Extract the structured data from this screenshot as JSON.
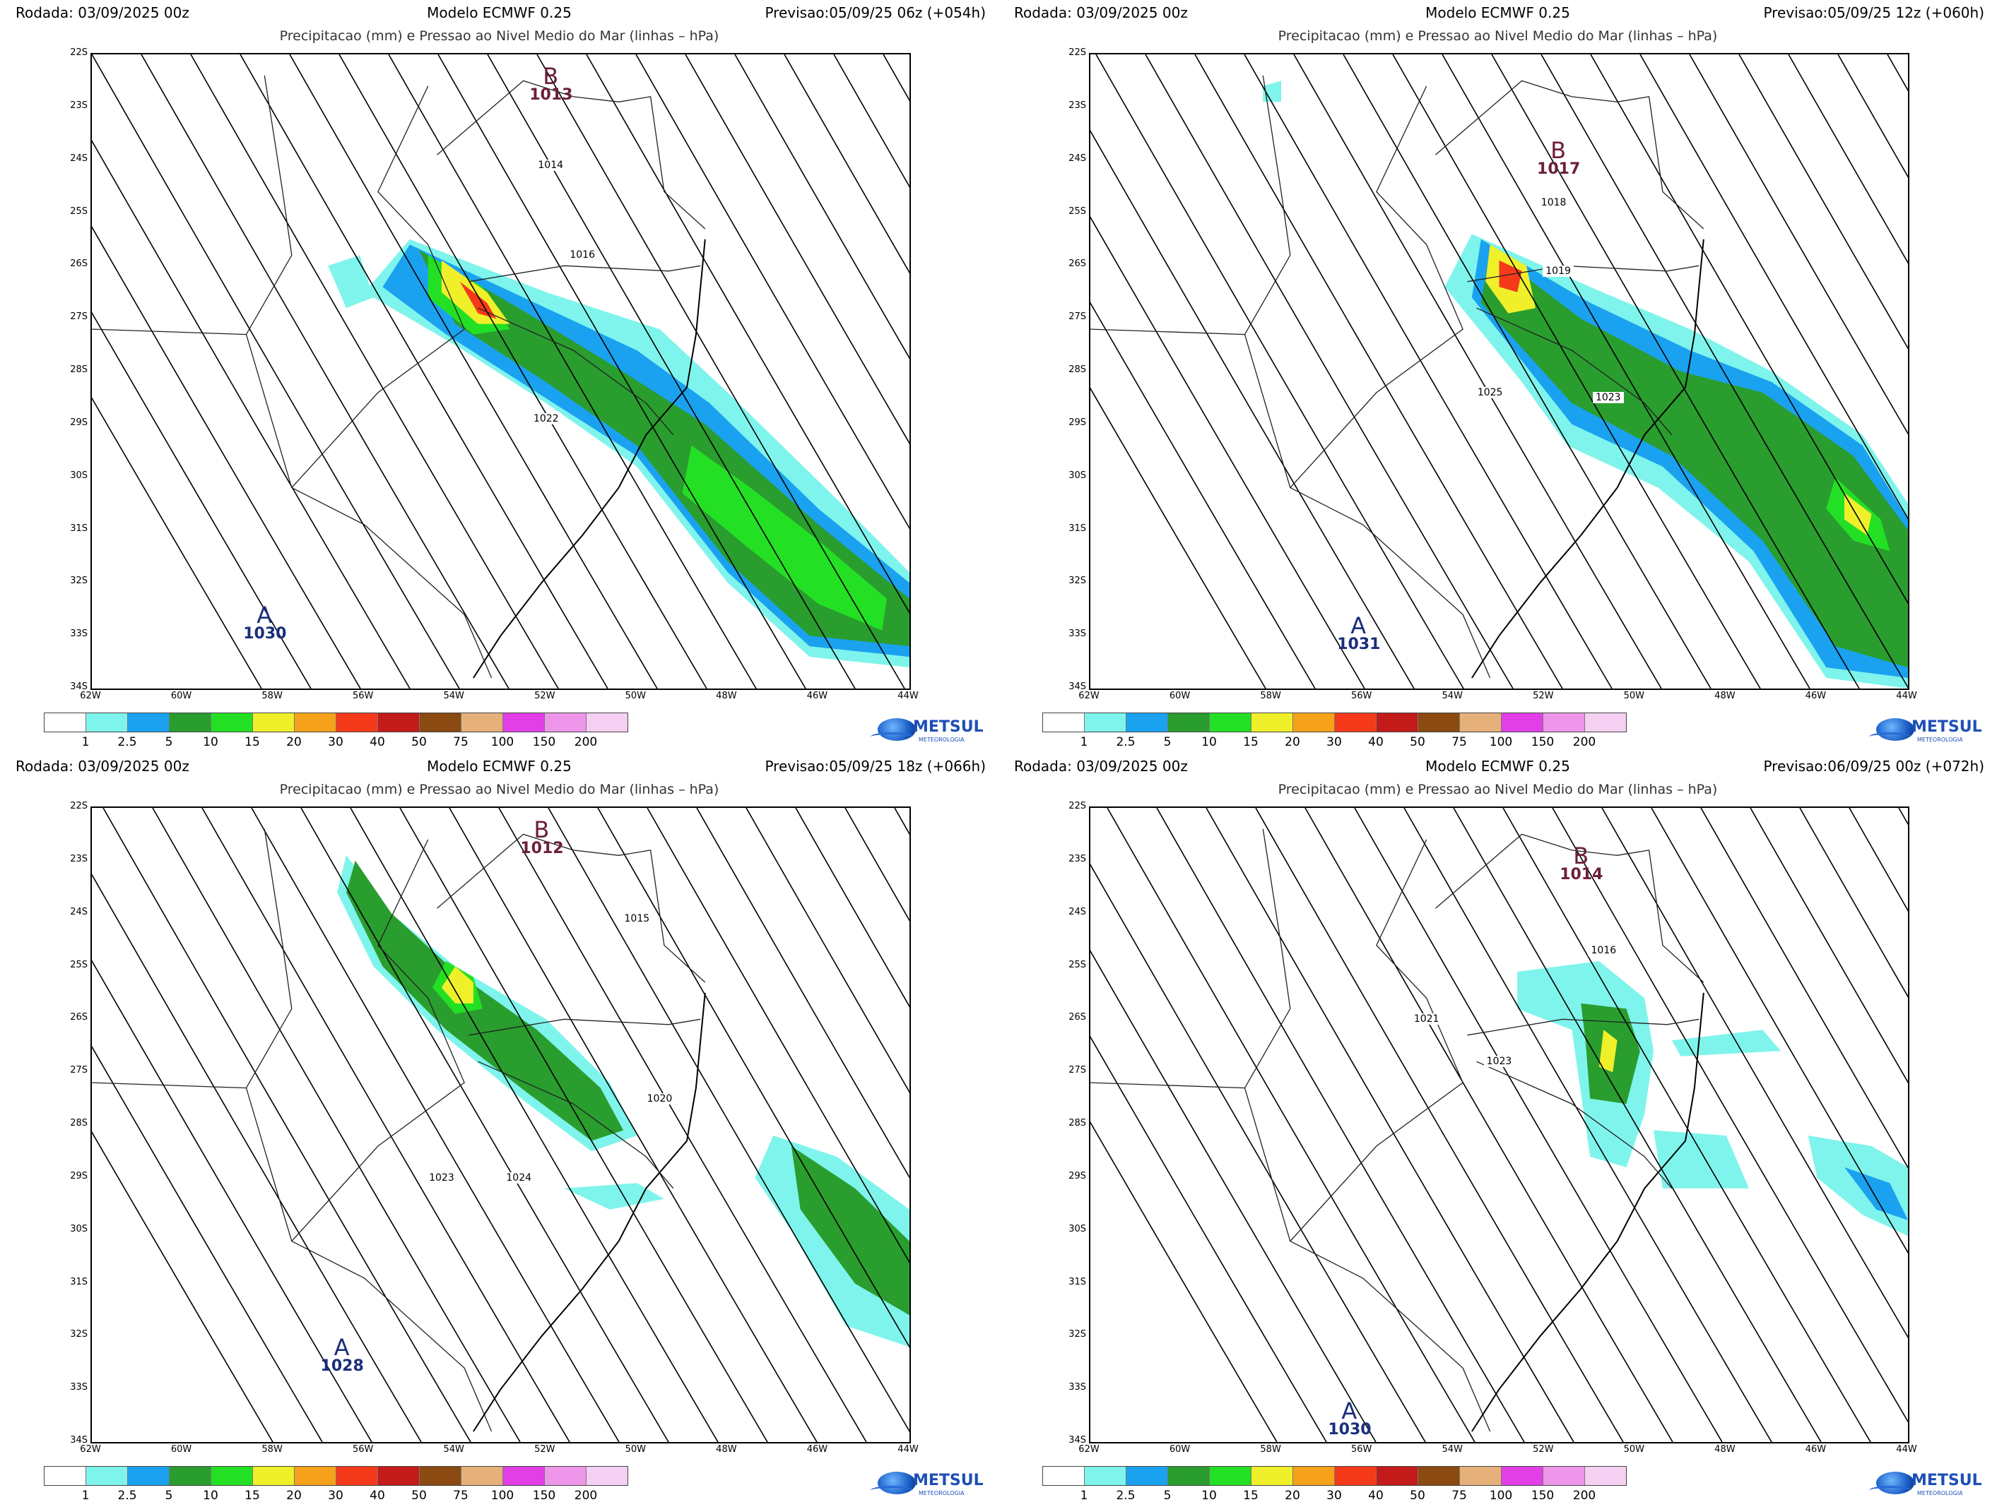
{
  "panels": [
    {
      "run": "Rodada: 03/09/2025 00z",
      "model": "Modelo ECMWF 0.25",
      "forecast": "Previsao:05/09/25 06z (+054h)",
      "subtitle": "Precipitacao (mm) e Pressao ao Nivel Medio do Mar (linhas – hPa)",
      "centers": [
        {
          "letter": "B",
          "value": "1013",
          "color": "#6b1f3a"
        },
        {
          "letter": "A",
          "value": "1030",
          "color": "#1a2f7a"
        }
      ],
      "isobar_labels": [
        "1014",
        "1016",
        "1022"
      ]
    },
    {
      "run": "Rodada: 03/09/2025 00z",
      "model": "Modelo ECMWF 0.25",
      "forecast": "Previsao:05/09/25 12z (+060h)",
      "subtitle": "Precipitacao (mm) e Pressao ao Nivel Medio do Mar (linhas – hPa)",
      "centers": [
        {
          "letter": "B",
          "value": "1017",
          "color": "#6b1f3a"
        },
        {
          "letter": "A",
          "value": "1031",
          "color": "#1a2f7a"
        }
      ],
      "isobar_labels": [
        "1018",
        "1019",
        "1025",
        "1023"
      ]
    },
    {
      "run": "Rodada: 03/09/2025 00z",
      "model": "Modelo ECMWF 0.25",
      "forecast": "Previsao:05/09/25 18z (+066h)",
      "subtitle": "Precipitacao (mm) e Pressao ao Nivel Medio do Mar (linhas – hPa)",
      "centers": [
        {
          "letter": "B",
          "value": "1012",
          "color": "#6b1f3a"
        },
        {
          "letter": "A",
          "value": "1028",
          "color": "#1a2f7a"
        }
      ],
      "isobar_labels": [
        "1015",
        "1020",
        "1023",
        "1024"
      ]
    },
    {
      "run": "Rodada: 03/09/2025 00z",
      "model": "Modelo ECMWF 0.25",
      "forecast": "Previsao:06/09/25 00z (+072h)",
      "subtitle": "Precipitacao (mm) e Pressao ao Nivel Medio do Mar (linhas – hPa)",
      "centers": [
        {
          "letter": "B",
          "value": "1014",
          "color": "#6b1f3a"
        },
        {
          "letter": "A",
          "value": "1030",
          "color": "#1a2f7a"
        }
      ],
      "isobar_labels": [
        "1016",
        "1021",
        "1023"
      ]
    }
  ],
  "lat_labels": [
    "22S",
    "23S",
    "24S",
    "25S",
    "26S",
    "27S",
    "28S",
    "29S",
    "30S",
    "31S",
    "32S",
    "33S",
    "34S"
  ],
  "lon_labels": [
    "62W",
    "60W",
    "58W",
    "56W",
    "54W",
    "52W",
    "50W",
    "48W",
    "46W",
    "44W"
  ],
  "colorbar": {
    "colors": [
      "#ffffff",
      "#7ff4ec",
      "#1aa2f0",
      "#2a9d2f",
      "#24e024",
      "#f0f02a",
      "#f5a21a",
      "#f53a1a",
      "#c31a1a",
      "#8a4a12",
      "#e6b07a",
      "#e23fe6",
      "#ee97ea",
      "#f5d0f2"
    ],
    "labels": [
      "1",
      "2.5",
      "5",
      "10",
      "15",
      "20",
      "30",
      "40",
      "50",
      "75",
      "100",
      "150",
      "200"
    ]
  },
  "logo": {
    "brand": "METSUL",
    "tagline": "METEOROLOGIA"
  }
}
